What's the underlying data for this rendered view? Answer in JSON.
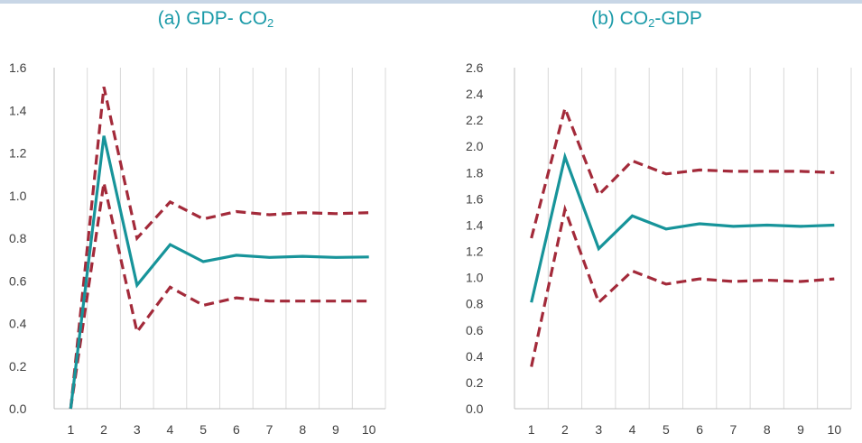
{
  "colors": {
    "central": "#17949a",
    "bands": "#a32a3a",
    "grid": "#d9d9d9",
    "axis": "#bfbfbf",
    "title": "#1a9aa8",
    "tick_text": "#404040"
  },
  "chart_data": [
    {
      "type": "line",
      "title_main": "(a) GDP- CO",
      "title_sub": "2",
      "title_suffix": "",
      "x": [
        1,
        2,
        3,
        4,
        5,
        6,
        7,
        8,
        9,
        10
      ],
      "x_tick_labels": [
        "1",
        "2",
        "3",
        "4",
        "5",
        "6",
        "7",
        "8",
        "9",
        "10"
      ],
      "y_tick_labels": [
        "0.0",
        "0.2",
        "0.4",
        "0.6",
        "0.8",
        "1.0",
        "1.2",
        "1.4",
        "1.6"
      ],
      "ylim": [
        0,
        1.6
      ],
      "grid": "vertical",
      "legend": "none",
      "series": [
        {
          "style": "solid",
          "color": "#17949a",
          "values": [
            0.0,
            1.28,
            0.58,
            0.77,
            0.69,
            0.72,
            0.71,
            0.715,
            0.71,
            0.712
          ]
        },
        {
          "style": "dashed",
          "color": "#a32a3a",
          "values": [
            0.0,
            1.51,
            0.8,
            0.97,
            0.89,
            0.925,
            0.91,
            0.92,
            0.915,
            0.92
          ]
        },
        {
          "style": "dashed",
          "color": "#a32a3a",
          "values": [
            0.0,
            1.06,
            0.36,
            0.57,
            0.485,
            0.52,
            0.505,
            0.505,
            0.505,
            0.505
          ]
        }
      ]
    },
    {
      "type": "line",
      "title_main": "(b) CO",
      "title_sub": "2",
      "title_suffix": "-GDP",
      "x": [
        1,
        2,
        3,
        4,
        5,
        6,
        7,
        8,
        9,
        10
      ],
      "x_tick_labels": [
        "1",
        "2",
        "3",
        "4",
        "5",
        "6",
        "7",
        "8",
        "9",
        "10"
      ],
      "y_tick_labels": [
        "0.0",
        "0.2",
        "0.4",
        "0.6",
        "0.8",
        "1.0",
        "1.2",
        "1.4",
        "1.6",
        "1.8",
        "2.0",
        "2.2",
        "2.4",
        "2.6"
      ],
      "ylim": [
        0,
        2.6
      ],
      "grid": "vertical",
      "legend": "none",
      "series": [
        {
          "style": "solid",
          "color": "#17949a",
          "values": [
            0.81,
            1.92,
            1.22,
            1.47,
            1.37,
            1.41,
            1.39,
            1.4,
            1.39,
            1.4
          ]
        },
        {
          "style": "dashed",
          "color": "#a32a3a",
          "values": [
            1.3,
            2.29,
            1.63,
            1.89,
            1.79,
            1.82,
            1.81,
            1.81,
            1.81,
            1.8
          ]
        },
        {
          "style": "dashed",
          "color": "#a32a3a",
          "values": [
            0.32,
            1.52,
            0.81,
            1.05,
            0.95,
            0.99,
            0.97,
            0.98,
            0.97,
            0.99
          ]
        }
      ]
    }
  ]
}
